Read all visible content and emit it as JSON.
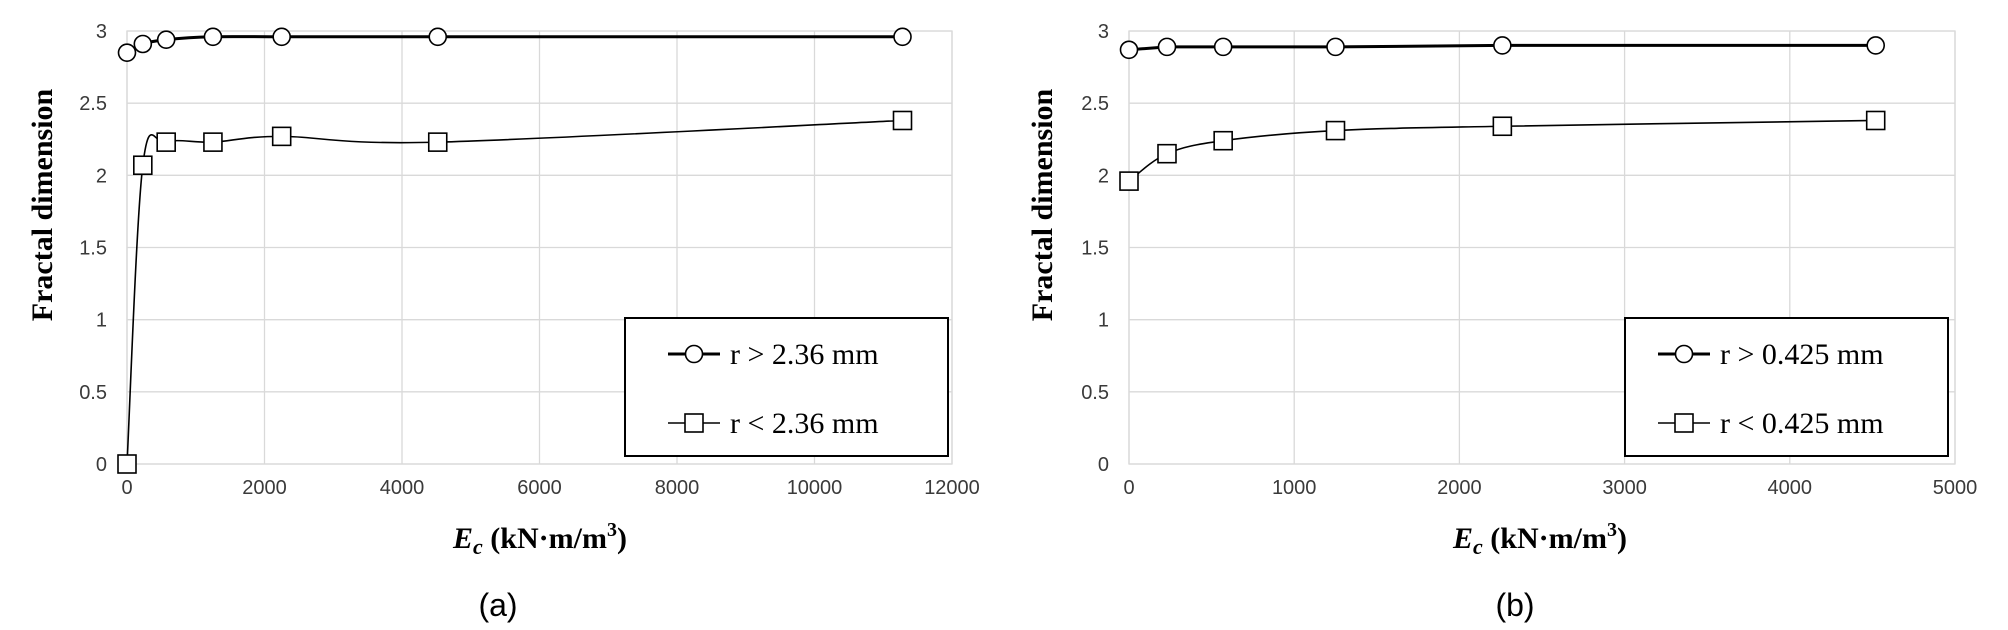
{
  "chart_data": [
    {
      "type": "line",
      "panel_label": "(a)",
      "xlabel": {
        "main": "E",
        "sub": "c",
        "rest": " (kN·m/m",
        "sup": "3",
        "end": ")"
      },
      "ylabel": "Fractal dimension",
      "xlim": [
        0,
        12000
      ],
      "ylim": [
        0,
        3
      ],
      "xticks": [
        0,
        2000,
        4000,
        6000,
        8000,
        10000,
        12000
      ],
      "xtick_labels": [
        "0",
        "2000",
        "4000",
        "6000",
        "8000",
        "10000",
        "12000"
      ],
      "yticks": [
        0,
        0.5,
        1,
        1.5,
        2,
        2.5,
        3
      ],
      "ytick_labels": [
        "0",
        "0.5",
        "1",
        "1.5",
        "2",
        "2.5",
        "3"
      ],
      "grid": true,
      "legend_position": "bottom-right",
      "series": [
        {
          "name": "r > 2.36 mm",
          "marker": "circle",
          "x": [
            0,
            230,
            570,
            1250,
            2250,
            4520,
            11280
          ],
          "y": [
            2.85,
            2.91,
            2.94,
            2.96,
            2.96,
            2.96,
            2.96
          ]
        },
        {
          "name": "r < 2.36 mm",
          "marker": "square",
          "x": [
            0,
            230,
            570,
            1250,
            2250,
            4520,
            11280
          ],
          "y": [
            0,
            2.07,
            2.23,
            2.23,
            2.27,
            2.23,
            2.38
          ]
        }
      ]
    },
    {
      "type": "line",
      "panel_label": "(b)",
      "xlabel": {
        "main": "E",
        "sub": "c",
        "rest": " (kN·m/m",
        "sup": "3",
        "end": ")"
      },
      "ylabel": "Fractal dimension",
      "xlim": [
        0,
        5000
      ],
      "ylim": [
        0,
        3
      ],
      "xticks": [
        0,
        1000,
        2000,
        3000,
        4000,
        5000
      ],
      "xtick_labels": [
        "0",
        "1000",
        "2000",
        "3000",
        "4000",
        "5000"
      ],
      "yticks": [
        0,
        0.5,
        1,
        1.5,
        2,
        2.5,
        3
      ],
      "ytick_labels": [
        "0",
        "0.5",
        "1",
        "1.5",
        "2",
        "2.5",
        "3"
      ],
      "grid": true,
      "legend_position": "bottom-right",
      "series": [
        {
          "name": "r > 0.425 mm",
          "marker": "circle",
          "x": [
            0,
            230,
            570,
            1250,
            2260,
            4520
          ],
          "y": [
            2.87,
            2.89,
            2.89,
            2.89,
            2.9,
            2.9
          ]
        },
        {
          "name": "r < 0.425 mm",
          "marker": "square",
          "x": [
            0,
            230,
            570,
            1250,
            2260,
            4520
          ],
          "y": [
            1.96,
            2.15,
            2.24,
            2.31,
            2.34,
            2.38
          ]
        }
      ]
    }
  ]
}
